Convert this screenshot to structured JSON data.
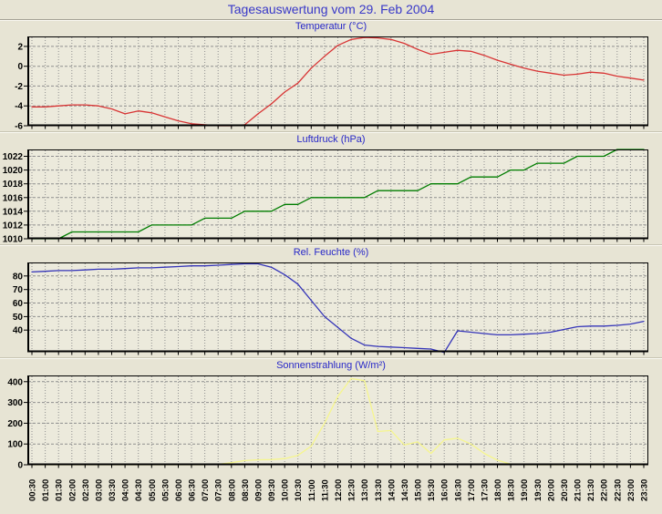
{
  "page": {
    "title": "Tagesauswertung vom 29. Feb 2004"
  },
  "x_labels": [
    "00:30",
    "01:00",
    "01:30",
    "02:00",
    "02:30",
    "03:00",
    "03:30",
    "04:00",
    "04:30",
    "05:00",
    "05:30",
    "06:00",
    "06:30",
    "07:00",
    "07:30",
    "08:00",
    "08:30",
    "09:00",
    "09:30",
    "10:00",
    "10:30",
    "11:00",
    "11:30",
    "12:00",
    "12:30",
    "13:00",
    "13:30",
    "14:00",
    "14:30",
    "15:00",
    "15:30",
    "16:00",
    "16:30",
    "17:00",
    "17:30",
    "18:00",
    "18:30",
    "19:00",
    "19:30",
    "20:00",
    "20:30",
    "21:00",
    "21:30",
    "22:00",
    "22:30",
    "23:00",
    "23:30"
  ],
  "chart_data": [
    {
      "type": "line",
      "title": "Temperatur (°C)",
      "color": "#d83434",
      "ylim": [
        -6,
        3
      ],
      "yticks": [
        2,
        0,
        -2,
        -4,
        -6
      ],
      "x": "shared: x_labels",
      "show_x_labels": false,
      "values": [
        -4.1,
        -4.1,
        -4.0,
        -3.9,
        -3.9,
        -4.0,
        -4.3,
        -4.8,
        -4.5,
        -4.7,
        -5.1,
        -5.5,
        -5.8,
        -5.9,
        -6.0,
        -6.0,
        -5.9,
        -4.8,
        -3.8,
        -2.6,
        -1.7,
        -0.2,
        1.0,
        2.1,
        2.7,
        2.9,
        2.85,
        2.7,
        2.3,
        1.7,
        1.2,
        1.4,
        1.6,
        1.5,
        1.1,
        0.6,
        0.2,
        -0.2,
        -0.5,
        -0.7,
        -0.9,
        -0.8,
        -0.6,
        -0.7,
        -1.0,
        -1.2,
        -1.4
      ]
    },
    {
      "type": "line",
      "title": "Luftdruck (hPa)",
      "color": "#007d00",
      "ylim": [
        1010,
        1023
      ],
      "yticks": [
        1022,
        1020,
        1018,
        1016,
        1014,
        1012,
        1010
      ],
      "x": "shared: x_labels",
      "show_x_labels": false,
      "values": [
        1010,
        1010,
        1010,
        1011,
        1011,
        1011,
        1011,
        1011,
        1011,
        1012,
        1012,
        1012,
        1012,
        1013,
        1013,
        1013,
        1014,
        1014,
        1014,
        1015,
        1015,
        1016,
        1016,
        1016,
        1016,
        1016,
        1017,
        1017,
        1017,
        1017,
        1018,
        1018,
        1018,
        1019,
        1019,
        1019,
        1020,
        1020,
        1021,
        1021,
        1021,
        1022,
        1022,
        1022,
        1023,
        1023,
        1023
      ]
    },
    {
      "type": "line",
      "title": "Rel. Feuchte (%)",
      "color": "#3434b8",
      "ylim": [
        24,
        90
      ],
      "yticks": [
        80,
        70,
        60,
        50,
        40
      ],
      "x": "shared: x_labels",
      "show_x_labels": false,
      "values": [
        83,
        83.5,
        84,
        84,
        84.5,
        85,
        85,
        85.5,
        86,
        86,
        86.5,
        87,
        87.5,
        87.5,
        88,
        88.5,
        89,
        89,
        86.5,
        81,
        74,
        62,
        50,
        42,
        34,
        29,
        28,
        27.5,
        27,
        26.5,
        26,
        23.5,
        39.5,
        38.5,
        37.5,
        36.5,
        36.5,
        37,
        37.5,
        38.5,
        40.5,
        42.5,
        43,
        43,
        43.5,
        44.5,
        46.5
      ]
    },
    {
      "type": "line",
      "title": "Sonnenstrahlung (W/m²)",
      "color": "#f6f68e",
      "ylim": [
        0,
        430
      ],
      "yticks": [
        400,
        300,
        200,
        100,
        0
      ],
      "x": "shared: x_labels",
      "show_x_labels": true,
      "values": [
        0,
        0,
        0,
        0,
        0,
        0,
        0,
        0,
        0,
        0,
        0,
        0,
        0,
        0,
        2,
        10,
        20,
        24,
        25,
        30,
        45,
        90,
        200,
        330,
        415,
        405,
        160,
        165,
        95,
        110,
        55,
        120,
        128,
        100,
        55,
        22,
        3,
        0,
        0,
        0,
        0,
        0,
        0,
        0,
        0,
        0,
        0
      ]
    }
  ],
  "style": {
    "page_background": "#e7e4d4",
    "plot_background": "#eceadc",
    "grid_color": "#8f8f8f",
    "axis_color": "#000000",
    "main_title_color": "#3838c8",
    "chart_title_color": "#2828c8",
    "tick_label_color": "#000000"
  }
}
